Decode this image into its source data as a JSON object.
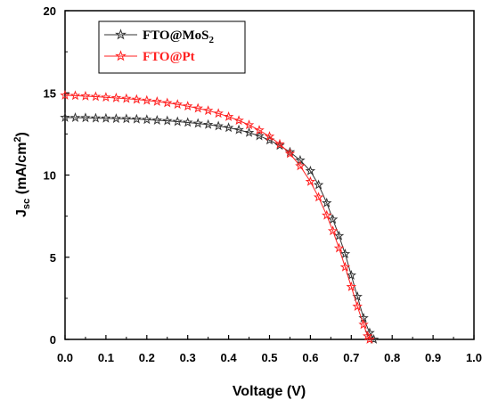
{
  "chart_data": {
    "type": "line",
    "xlabel": "Voltage (V)",
    "ylabel": {
      "main": "J",
      "sub": "sc",
      "units": " (mA/cm",
      "sup": "2",
      "close": ")"
    },
    "xlim": [
      0.0,
      1.0
    ],
    "ylim": [
      0,
      20
    ],
    "x_ticks": [
      "0.0",
      "0.1",
      "0.2",
      "0.3",
      "0.4",
      "0.5",
      "0.6",
      "0.7",
      "0.8",
      "0.9",
      "1.0"
    ],
    "y_ticks": [
      "0",
      "5",
      "10",
      "15",
      "20"
    ],
    "grid": false,
    "legend_position": "top-left",
    "series": [
      {
        "name": {
          "main": "FTO@MoS",
          "sub": "2"
        },
        "color": "#333333",
        "marker": "star",
        "points": [
          [
            0.0,
            13.5
          ],
          [
            0.025,
            13.49
          ],
          [
            0.05,
            13.48
          ],
          [
            0.075,
            13.46
          ],
          [
            0.1,
            13.45
          ],
          [
            0.125,
            13.43
          ],
          [
            0.15,
            13.42
          ],
          [
            0.175,
            13.4
          ],
          [
            0.2,
            13.37
          ],
          [
            0.225,
            13.33
          ],
          [
            0.25,
            13.3
          ],
          [
            0.275,
            13.25
          ],
          [
            0.3,
            13.2
          ],
          [
            0.325,
            13.14
          ],
          [
            0.35,
            13.07
          ],
          [
            0.375,
            12.98
          ],
          [
            0.4,
            12.88
          ],
          [
            0.425,
            12.75
          ],
          [
            0.45,
            12.58
          ],
          [
            0.475,
            12.38
          ],
          [
            0.5,
            12.12
          ],
          [
            0.525,
            11.8
          ],
          [
            0.55,
            11.4
          ],
          [
            0.575,
            10.9
          ],
          [
            0.6,
            10.25
          ],
          [
            0.62,
            9.4
          ],
          [
            0.64,
            8.3
          ],
          [
            0.655,
            7.3
          ],
          [
            0.67,
            6.3
          ],
          [
            0.685,
            5.2
          ],
          [
            0.7,
            3.9
          ],
          [
            0.715,
            2.6
          ],
          [
            0.73,
            1.3
          ],
          [
            0.745,
            0.4
          ],
          [
            0.755,
            0.0
          ]
        ]
      },
      {
        "name": {
          "main": "FTO@Pt",
          "sub": ""
        },
        "color": "#ff2020",
        "marker": "star",
        "points": [
          [
            0.0,
            14.85
          ],
          [
            0.025,
            14.83
          ],
          [
            0.05,
            14.8
          ],
          [
            0.075,
            14.77
          ],
          [
            0.1,
            14.73
          ],
          [
            0.125,
            14.69
          ],
          [
            0.15,
            14.65
          ],
          [
            0.175,
            14.6
          ],
          [
            0.2,
            14.54
          ],
          [
            0.225,
            14.47
          ],
          [
            0.25,
            14.39
          ],
          [
            0.275,
            14.3
          ],
          [
            0.3,
            14.19
          ],
          [
            0.325,
            14.06
          ],
          [
            0.35,
            13.92
          ],
          [
            0.375,
            13.75
          ],
          [
            0.4,
            13.55
          ],
          [
            0.425,
            13.32
          ],
          [
            0.45,
            13.05
          ],
          [
            0.475,
            12.73
          ],
          [
            0.5,
            12.35
          ],
          [
            0.525,
            11.88
          ],
          [
            0.55,
            11.3
          ],
          [
            0.575,
            10.55
          ],
          [
            0.6,
            9.6
          ],
          [
            0.62,
            8.65
          ],
          [
            0.64,
            7.55
          ],
          [
            0.655,
            6.6
          ],
          [
            0.67,
            5.55
          ],
          [
            0.685,
            4.4
          ],
          [
            0.7,
            3.2
          ],
          [
            0.715,
            2.0
          ],
          [
            0.73,
            0.9
          ],
          [
            0.74,
            0.2
          ],
          [
            0.745,
            0.0
          ]
        ]
      }
    ]
  }
}
